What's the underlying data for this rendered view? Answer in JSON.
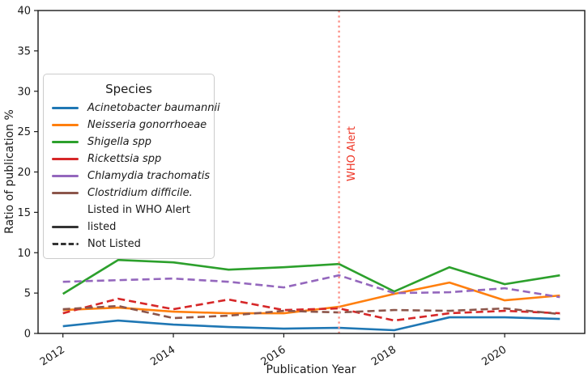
{
  "figure": {
    "xlabel": "Publication Year",
    "ylabel": "Ratio of publication %"
  },
  "chart_data": {
    "type": "line",
    "title": "",
    "xlabel": "Publication Year",
    "ylabel": "Ratio of publication %",
    "x": [
      2012,
      2013,
      2014,
      2015,
      2016,
      2017,
      2018,
      2019,
      2020,
      2021
    ],
    "xticks": [
      2012,
      2014,
      2016,
      2018,
      2020
    ],
    "yticks": [
      0,
      5,
      10,
      15,
      20,
      25,
      30,
      35,
      40
    ],
    "xlim": [
      2011.55,
      2021.45
    ],
    "ylim": [
      0,
      40
    ],
    "grid": false,
    "legend_position": "upper-left-inside",
    "series": [
      {
        "name": "Acinetobacter baumannii",
        "color": "#1f77b4",
        "linestyle": "solid",
        "who_listed": "listed",
        "values": [
          0.9,
          1.6,
          1.1,
          0.8,
          0.6,
          0.7,
          0.4,
          2.0,
          2.0,
          1.8
        ]
      },
      {
        "name": "Neisseria gonorrhoeae",
        "color": "#ff7f0e",
        "linestyle": "solid",
        "who_listed": "listed",
        "values": [
          2.9,
          3.2,
          2.7,
          2.5,
          2.5,
          3.3,
          4.9,
          6.3,
          4.1,
          4.7
        ]
      },
      {
        "name": "Shigella spp",
        "color": "#2ca02c",
        "linestyle": "solid",
        "who_listed": "listed",
        "values": [
          4.9,
          9.1,
          8.8,
          7.9,
          8.2,
          8.6,
          5.2,
          8.2,
          6.1,
          7.2
        ]
      },
      {
        "name": "Rickettsia spp",
        "color": "#d62728",
        "linestyle": "dashed",
        "who_listed": "not-listed",
        "values": [
          2.5,
          4.3,
          3.0,
          4.2,
          2.9,
          3.1,
          1.6,
          2.5,
          2.8,
          2.5
        ]
      },
      {
        "name": "Chlamydia trachomatis",
        "color": "#9467bd",
        "linestyle": "dashed",
        "who_listed": "not-listed",
        "values": [
          6.4,
          6.6,
          6.8,
          6.4,
          5.7,
          7.2,
          5.0,
          5.1,
          5.6,
          4.5
        ]
      },
      {
        "name": "Clostridium difficile.",
        "color": "#8c564b",
        "linestyle": "dashed",
        "who_listed": "not-listed",
        "values": [
          3.0,
          3.4,
          1.9,
          2.2,
          2.8,
          2.6,
          2.9,
          2.8,
          3.1,
          2.4
        ]
      }
    ],
    "vline": {
      "x": 2017,
      "label": "WHO Alert",
      "label_color": "#ee3424",
      "line_color": "#fb9188",
      "style": "dotted"
    },
    "legend": {
      "title": "Species",
      "group_title": "Listed in WHO Alert",
      "listed_label": "listed",
      "not_listed_label": "Not Listed",
      "status_line_color": "#333333"
    }
  }
}
